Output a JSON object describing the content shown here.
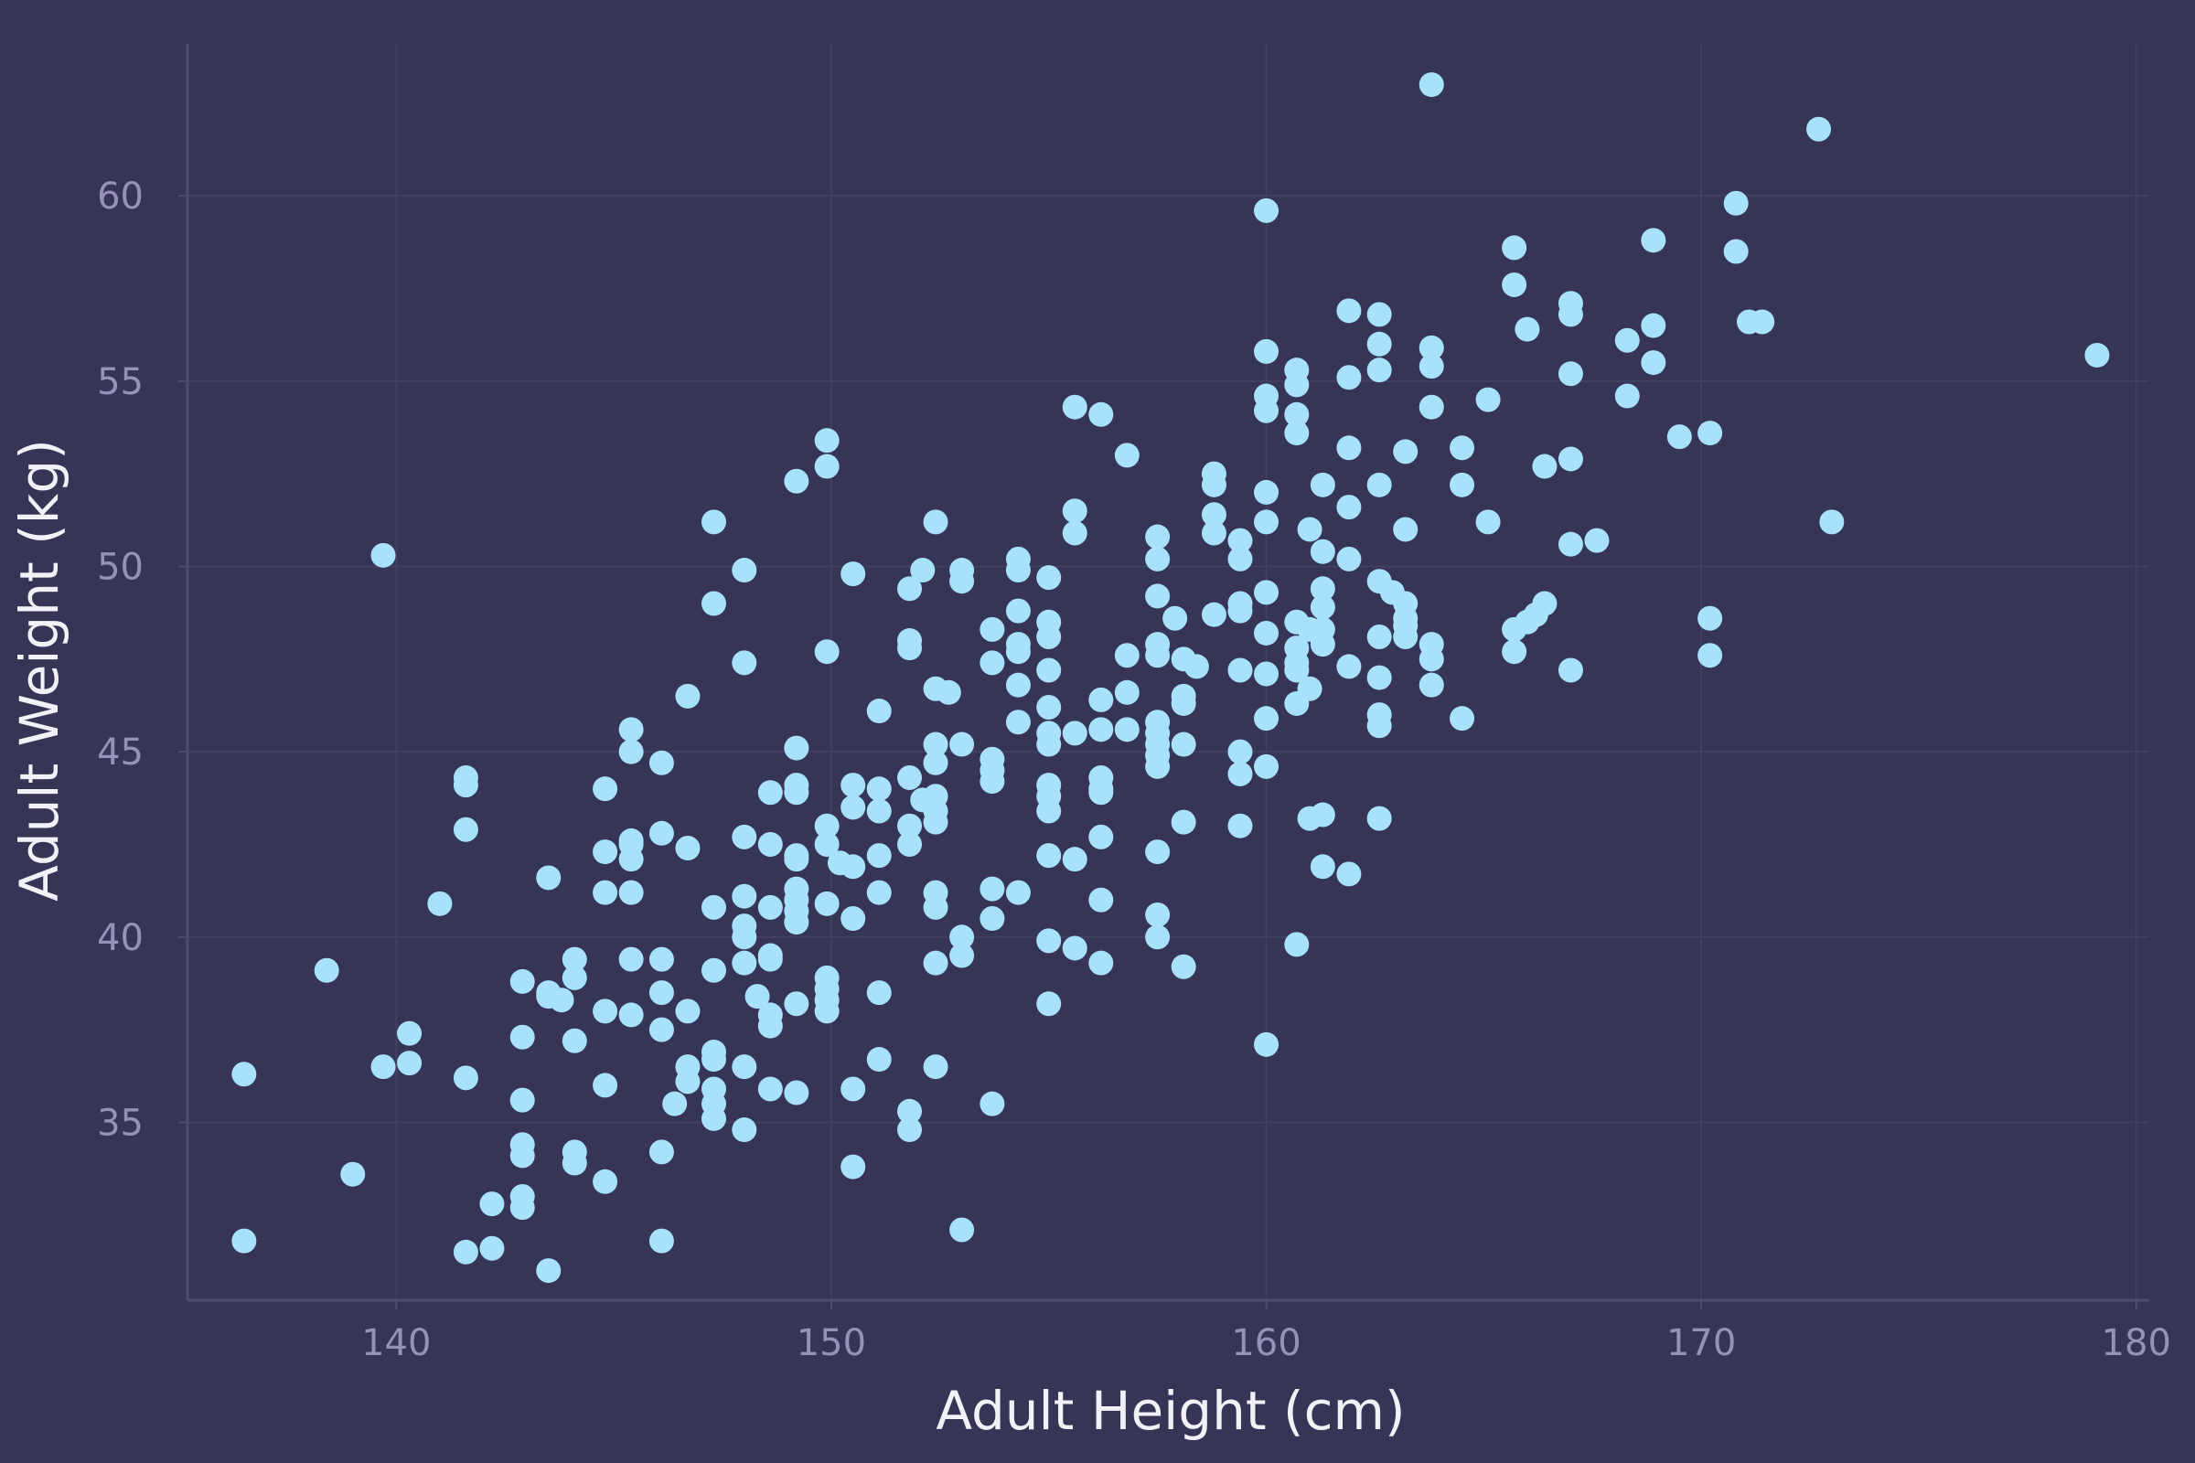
{
  "colors": {
    "background": "#363555",
    "grid": "#41405f",
    "axis": "#4d4c70",
    "tick_text": "#9791b8",
    "axis_title": "#f2f1f8",
    "point": "#a7e1fb"
  },
  "chart_data": {
    "type": "scatter",
    "xlabel": "Adult Height (cm)",
    "ylabel": "Adult Weight (kg)",
    "xlim": [
      135.2,
      180.3
    ],
    "ylim": [
      30.2,
      64.1
    ],
    "x_ticks": [
      "140",
      "150",
      "160",
      "170",
      "180"
    ],
    "y_ticks": [
      "35",
      "40",
      "45",
      "50",
      "55",
      "60"
    ],
    "x_tick_values": [
      140,
      150,
      160,
      170,
      180
    ],
    "y_tick_values": [
      35,
      40,
      45,
      50,
      55,
      60
    ],
    "grid": true,
    "points": [
      [
        136.5,
        36.3
      ],
      [
        136.5,
        31.8
      ],
      [
        138.4,
        39.1
      ],
      [
        139.0,
        33.6
      ],
      [
        139.7,
        36.5
      ],
      [
        139.7,
        50.3
      ],
      [
        140.3,
        36.6
      ],
      [
        140.3,
        37.4
      ],
      [
        141.0,
        40.9
      ],
      [
        141.6,
        44.3
      ],
      [
        141.6,
        44.1
      ],
      [
        141.6,
        42.9
      ],
      [
        141.6,
        36.2
      ],
      [
        141.6,
        31.5
      ],
      [
        142.2,
        32.8
      ],
      [
        142.2,
        31.6
      ],
      [
        142.9,
        38.8
      ],
      [
        142.9,
        37.3
      ],
      [
        142.9,
        35.6
      ],
      [
        142.9,
        34.4
      ],
      [
        142.9,
        34.1
      ],
      [
        142.9,
        33.0
      ],
      [
        142.9,
        32.7
      ],
      [
        143.5,
        41.6
      ],
      [
        143.5,
        38.5
      ],
      [
        143.5,
        38.4
      ],
      [
        143.5,
        31.0
      ],
      [
        144.1,
        39.4
      ],
      [
        144.1,
        38.9
      ],
      [
        144.1,
        37.2
      ],
      [
        144.1,
        34.2
      ],
      [
        144.1,
        33.9
      ],
      [
        143.8,
        38.3
      ],
      [
        144.8,
        44.0
      ],
      [
        144.8,
        42.3
      ],
      [
        144.8,
        41.2
      ],
      [
        144.8,
        38.0
      ],
      [
        144.8,
        36.0
      ],
      [
        144.8,
        33.4
      ],
      [
        145.4,
        45.6
      ],
      [
        145.4,
        45.0
      ],
      [
        145.4,
        42.6
      ],
      [
        145.4,
        42.5
      ],
      [
        145.4,
        42.1
      ],
      [
        145.4,
        41.2
      ],
      [
        145.4,
        39.4
      ],
      [
        145.4,
        37.9
      ],
      [
        146.1,
        44.7
      ],
      [
        146.1,
        42.8
      ],
      [
        146.1,
        39.4
      ],
      [
        146.1,
        38.5
      ],
      [
        146.1,
        37.5
      ],
      [
        146.1,
        34.2
      ],
      [
        146.1,
        31.8
      ],
      [
        146.4,
        35.5
      ],
      [
        146.7,
        46.5
      ],
      [
        146.7,
        42.4
      ],
      [
        146.7,
        38.0
      ],
      [
        146.7,
        36.5
      ],
      [
        146.7,
        36.1
      ],
      [
        147.3,
        51.2
      ],
      [
        147.3,
        49.0
      ],
      [
        147.3,
        40.8
      ],
      [
        147.3,
        39.1
      ],
      [
        147.3,
        36.9
      ],
      [
        147.3,
        36.7
      ],
      [
        147.3,
        35.9
      ],
      [
        147.3,
        35.5
      ],
      [
        147.3,
        35.1
      ],
      [
        148.0,
        49.9
      ],
      [
        148.0,
        47.4
      ],
      [
        148.0,
        42.7
      ],
      [
        148.0,
        41.1
      ],
      [
        148.0,
        40.3
      ],
      [
        148.0,
        40.0
      ],
      [
        148.0,
        39.3
      ],
      [
        148.0,
        36.5
      ],
      [
        148.0,
        34.8
      ],
      [
        148.3,
        38.4
      ],
      [
        148.6,
        43.9
      ],
      [
        148.6,
        42.5
      ],
      [
        148.6,
        40.8
      ],
      [
        148.6,
        39.5
      ],
      [
        148.6,
        39.4
      ],
      [
        148.6,
        37.9
      ],
      [
        148.6,
        37.6
      ],
      [
        148.6,
        35.9
      ],
      [
        149.2,
        52.3
      ],
      [
        149.2,
        45.1
      ],
      [
        149.2,
        44.1
      ],
      [
        149.2,
        43.9
      ],
      [
        149.2,
        42.2
      ],
      [
        149.2,
        42.1
      ],
      [
        149.2,
        41.3
      ],
      [
        149.2,
        41.0
      ],
      [
        149.2,
        40.7
      ],
      [
        149.2,
        40.4
      ],
      [
        149.2,
        38.2
      ],
      [
        149.2,
        35.8
      ],
      [
        149.9,
        53.4
      ],
      [
        149.9,
        52.7
      ],
      [
        149.9,
        47.7
      ],
      [
        149.9,
        43.0
      ],
      [
        149.9,
        42.5
      ],
      [
        149.9,
        40.9
      ],
      [
        149.9,
        38.9
      ],
      [
        149.9,
        38.6
      ],
      [
        149.9,
        38.3
      ],
      [
        149.9,
        38.0
      ],
      [
        150.2,
        42.0
      ],
      [
        150.5,
        49.8
      ],
      [
        150.5,
        44.1
      ],
      [
        150.5,
        43.5
      ],
      [
        150.5,
        41.9
      ],
      [
        150.5,
        40.5
      ],
      [
        150.5,
        35.9
      ],
      [
        150.5,
        33.8
      ],
      [
        151.1,
        46.1
      ],
      [
        151.1,
        44.0
      ],
      [
        151.1,
        43.4
      ],
      [
        151.1,
        42.2
      ],
      [
        151.1,
        41.2
      ],
      [
        151.1,
        38.5
      ],
      [
        151.1,
        36.7
      ],
      [
        151.8,
        49.4
      ],
      [
        151.8,
        48.0
      ],
      [
        151.8,
        47.8
      ],
      [
        151.8,
        44.3
      ],
      [
        151.8,
        43.0
      ],
      [
        151.8,
        42.5
      ],
      [
        151.8,
        35.3
      ],
      [
        151.8,
        34.8
      ],
      [
        152.1,
        49.9
      ],
      [
        152.1,
        43.7
      ],
      [
        152.4,
        51.2
      ],
      [
        152.4,
        46.7
      ],
      [
        152.4,
        45.2
      ],
      [
        152.4,
        44.7
      ],
      [
        152.4,
        43.8
      ],
      [
        152.4,
        43.4
      ],
      [
        152.4,
        43.1
      ],
      [
        152.4,
        41.2
      ],
      [
        152.4,
        40.8
      ],
      [
        152.4,
        39.3
      ],
      [
        152.4,
        36.5
      ],
      [
        152.7,
        46.6
      ],
      [
        153.0,
        49.9
      ],
      [
        153.0,
        49.6
      ],
      [
        153.0,
        45.2
      ],
      [
        153.0,
        40.0
      ],
      [
        153.0,
        39.5
      ],
      [
        153.0,
        32.1
      ],
      [
        153.7,
        48.3
      ],
      [
        153.7,
        47.4
      ],
      [
        153.7,
        44.8
      ],
      [
        153.7,
        44.5
      ],
      [
        153.7,
        44.2
      ],
      [
        153.7,
        41.3
      ],
      [
        153.7,
        40.5
      ],
      [
        153.7,
        35.5
      ],
      [
        154.3,
        50.2
      ],
      [
        154.3,
        49.9
      ],
      [
        154.3,
        48.8
      ],
      [
        154.3,
        47.9
      ],
      [
        154.3,
        47.7
      ],
      [
        154.3,
        46.8
      ],
      [
        154.3,
        45.8
      ],
      [
        154.3,
        41.2
      ],
      [
        155.0,
        49.7
      ],
      [
        155.0,
        48.5
      ],
      [
        155.0,
        48.1
      ],
      [
        155.0,
        47.2
      ],
      [
        155.0,
        46.2
      ],
      [
        155.0,
        45.5
      ],
      [
        155.0,
        45.2
      ],
      [
        155.0,
        44.1
      ],
      [
        155.0,
        43.8
      ],
      [
        155.0,
        43.4
      ],
      [
        155.0,
        42.2
      ],
      [
        155.0,
        39.9
      ],
      [
        155.0,
        38.2
      ],
      [
        155.6,
        54.3
      ],
      [
        155.6,
        51.5
      ],
      [
        155.6,
        50.9
      ],
      [
        155.6,
        45.5
      ],
      [
        155.6,
        42.1
      ],
      [
        155.6,
        39.7
      ],
      [
        156.2,
        54.1
      ],
      [
        156.2,
        46.4
      ],
      [
        156.2,
        45.6
      ],
      [
        156.2,
        44.3
      ],
      [
        156.2,
        44.0
      ],
      [
        156.2,
        43.9
      ],
      [
        156.2,
        42.7
      ],
      [
        156.2,
        41.0
      ],
      [
        156.2,
        39.3
      ],
      [
        156.8,
        53.0
      ],
      [
        156.8,
        47.6
      ],
      [
        156.8,
        46.6
      ],
      [
        156.8,
        45.6
      ],
      [
        157.5,
        50.8
      ],
      [
        157.5,
        50.2
      ],
      [
        157.5,
        49.2
      ],
      [
        157.5,
        47.9
      ],
      [
        157.5,
        47.6
      ],
      [
        157.5,
        45.8
      ],
      [
        157.5,
        45.5
      ],
      [
        157.5,
        45.2
      ],
      [
        157.5,
        44.9
      ],
      [
        157.5,
        44.6
      ],
      [
        157.5,
        42.3
      ],
      [
        157.5,
        40.6
      ],
      [
        157.5,
        40.0
      ],
      [
        157.9,
        48.6
      ],
      [
        158.1,
        47.5
      ],
      [
        158.1,
        46.5
      ],
      [
        158.1,
        46.3
      ],
      [
        158.1,
        45.2
      ],
      [
        158.1,
        43.1
      ],
      [
        158.1,
        39.2
      ],
      [
        158.4,
        47.3
      ],
      [
        158.8,
        52.5
      ],
      [
        158.8,
        52.2
      ],
      [
        158.8,
        51.4
      ],
      [
        158.8,
        50.9
      ],
      [
        158.8,
        48.7
      ],
      [
        159.4,
        50.7
      ],
      [
        159.4,
        50.2
      ],
      [
        159.4,
        49.0
      ],
      [
        159.4,
        48.8
      ],
      [
        159.4,
        47.2
      ],
      [
        159.4,
        45.0
      ],
      [
        159.4,
        44.4
      ],
      [
        159.4,
        43.0
      ],
      [
        160.0,
        59.6
      ],
      [
        160.0,
        55.8
      ],
      [
        160.0,
        54.6
      ],
      [
        160.0,
        54.2
      ],
      [
        160.0,
        52.0
      ],
      [
        160.0,
        51.2
      ],
      [
        160.0,
        49.3
      ],
      [
        160.0,
        48.2
      ],
      [
        160.0,
        47.1
      ],
      [
        160.0,
        45.9
      ],
      [
        160.0,
        44.6
      ],
      [
        160.0,
        37.1
      ],
      [
        160.7,
        55.3
      ],
      [
        160.7,
        54.9
      ],
      [
        160.7,
        54.1
      ],
      [
        160.7,
        53.6
      ],
      [
        160.7,
        48.5
      ],
      [
        160.7,
        47.8
      ],
      [
        160.7,
        47.4
      ],
      [
        160.7,
        47.2
      ],
      [
        160.7,
        46.3
      ],
      [
        160.7,
        39.8
      ],
      [
        161.0,
        51.0
      ],
      [
        161.0,
        48.3
      ],
      [
        161.0,
        46.7
      ],
      [
        161.0,
        43.2
      ],
      [
        161.3,
        52.2
      ],
      [
        161.3,
        50.4
      ],
      [
        161.3,
        49.4
      ],
      [
        161.3,
        48.9
      ],
      [
        161.3,
        48.3
      ],
      [
        161.3,
        47.9
      ],
      [
        161.3,
        43.3
      ],
      [
        161.3,
        41.9
      ],
      [
        161.9,
        56.9
      ],
      [
        161.9,
        55.1
      ],
      [
        161.9,
        53.2
      ],
      [
        161.9,
        51.6
      ],
      [
        161.9,
        50.2
      ],
      [
        161.9,
        47.3
      ],
      [
        161.9,
        41.7
      ],
      [
        162.6,
        56.8
      ],
      [
        162.6,
        56.0
      ],
      [
        162.6,
        55.3
      ],
      [
        162.6,
        52.2
      ],
      [
        162.6,
        49.6
      ],
      [
        162.6,
        48.1
      ],
      [
        162.6,
        47.0
      ],
      [
        162.6,
        46.0
      ],
      [
        162.6,
        45.7
      ],
      [
        162.6,
        43.2
      ],
      [
        162.9,
        49.3
      ],
      [
        163.2,
        53.1
      ],
      [
        163.2,
        51.0
      ],
      [
        163.2,
        49.0
      ],
      [
        163.2,
        48.6
      ],
      [
        163.2,
        48.4
      ],
      [
        163.2,
        48.1
      ],
      [
        163.8,
        63.0
      ],
      [
        163.8,
        55.9
      ],
      [
        163.8,
        55.4
      ],
      [
        163.8,
        54.3
      ],
      [
        163.8,
        47.9
      ],
      [
        163.8,
        47.5
      ],
      [
        163.8,
        46.8
      ],
      [
        164.5,
        53.2
      ],
      [
        164.5,
        52.2
      ],
      [
        164.5,
        45.9
      ],
      [
        165.1,
        54.5
      ],
      [
        165.1,
        51.2
      ],
      [
        165.7,
        58.6
      ],
      [
        165.7,
        57.6
      ],
      [
        165.7,
        48.3
      ],
      [
        165.7,
        47.7
      ],
      [
        166.0,
        48.5
      ],
      [
        166.0,
        56.4
      ],
      [
        166.2,
        48.7
      ],
      [
        166.4,
        52.7
      ],
      [
        166.4,
        49.0
      ],
      [
        167.0,
        57.1
      ],
      [
        167.0,
        56.8
      ],
      [
        167.0,
        55.2
      ],
      [
        167.0,
        52.9
      ],
      [
        167.0,
        50.6
      ],
      [
        167.0,
        47.2
      ],
      [
        167.6,
        50.7
      ],
      [
        168.3,
        56.1
      ],
      [
        168.3,
        54.6
      ],
      [
        168.9,
        58.8
      ],
      [
        168.9,
        56.5
      ],
      [
        168.9,
        55.5
      ],
      [
        169.5,
        53.5
      ],
      [
        170.2,
        53.6
      ],
      [
        170.2,
        48.6
      ],
      [
        170.2,
        47.6
      ],
      [
        170.8,
        59.8
      ],
      [
        170.8,
        58.5
      ],
      [
        171.1,
        56.6
      ],
      [
        171.4,
        56.6
      ],
      [
        172.7,
        61.8
      ],
      [
        173.0,
        51.2
      ],
      [
        179.1,
        55.7
      ]
    ]
  }
}
